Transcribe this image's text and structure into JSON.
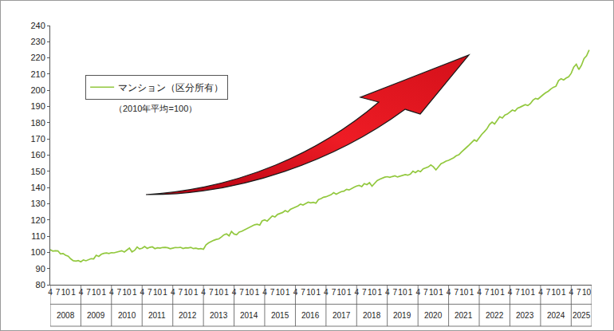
{
  "chart_data": {
    "type": "line",
    "note": "（2010年平均=100）",
    "legend": "upper left",
    "grid": false,
    "ylim": [
      80,
      240
    ],
    "yticks": [
      80,
      90,
      100,
      110,
      120,
      130,
      140,
      150,
      160,
      170,
      180,
      190,
      200,
      210,
      220,
      230,
      240
    ],
    "xlim": [
      "2008-04",
      "2025-12"
    ],
    "xticks": [
      {
        "value": "2008-04",
        "label": "4"
      },
      {
        "value": "2008-07",
        "label": "7"
      },
      {
        "value": "2008-10",
        "label": "10"
      },
      {
        "value": "2009-01",
        "label": "1"
      },
      {
        "value": "2009-04",
        "label": "4"
      },
      {
        "value": "2009-07",
        "label": "7"
      },
      {
        "value": "2009-10",
        "label": "10"
      },
      {
        "value": "2010-01",
        "label": "1"
      },
      {
        "value": "2010-04",
        "label": "4"
      },
      {
        "value": "2010-07",
        "label": "7"
      },
      {
        "value": "2010-10",
        "label": "10"
      },
      {
        "value": "2011-01",
        "label": "1"
      },
      {
        "value": "2011-04",
        "label": "4"
      },
      {
        "value": "2011-07",
        "label": "7"
      },
      {
        "value": "2011-10",
        "label": "10"
      },
      {
        "value": "2012-01",
        "label": "1"
      },
      {
        "value": "2012-04",
        "label": "4"
      },
      {
        "value": "2012-07",
        "label": "7"
      },
      {
        "value": "2012-10",
        "label": "10"
      },
      {
        "value": "2013-01",
        "label": "1"
      },
      {
        "value": "2013-04",
        "label": "4"
      },
      {
        "value": "2013-07",
        "label": "7"
      },
      {
        "value": "2013-10",
        "label": "10"
      },
      {
        "value": "2014-01",
        "label": "1"
      },
      {
        "value": "2014-04",
        "label": "4"
      },
      {
        "value": "2014-07",
        "label": "7"
      },
      {
        "value": "2014-10",
        "label": "10"
      },
      {
        "value": "2015-01",
        "label": "1"
      },
      {
        "value": "2015-04",
        "label": "4"
      },
      {
        "value": "2015-07",
        "label": "7"
      },
      {
        "value": "2015-10",
        "label": "10"
      },
      {
        "value": "2016-01",
        "label": "1"
      },
      {
        "value": "2016-04",
        "label": "4"
      },
      {
        "value": "2016-07",
        "label": "7"
      },
      {
        "value": "2016-10",
        "label": "10"
      },
      {
        "value": "2017-01",
        "label": "1"
      },
      {
        "value": "2017-04",
        "label": "4"
      },
      {
        "value": "2017-07",
        "label": "7"
      },
      {
        "value": "2017-10",
        "label": "10"
      },
      {
        "value": "2018-01",
        "label": "1"
      },
      {
        "value": "2018-04",
        "label": "4"
      },
      {
        "value": "2018-07",
        "label": "7"
      },
      {
        "value": "2018-10",
        "label": "10"
      },
      {
        "value": "2019-01",
        "label": "1"
      },
      {
        "value": "2019-04",
        "label": "4"
      },
      {
        "value": "2019-07",
        "label": "7"
      },
      {
        "value": "2019-10",
        "label": "10"
      },
      {
        "value": "2020-01",
        "label": "1"
      },
      {
        "value": "2020-04",
        "label": "4"
      },
      {
        "value": "2020-07",
        "label": "7"
      },
      {
        "value": "2020-10",
        "label": "10"
      },
      {
        "value": "2021-01",
        "label": "1"
      },
      {
        "value": "2021-04",
        "label": "4"
      },
      {
        "value": "2021-07",
        "label": "7"
      },
      {
        "value": "2021-10",
        "label": "10"
      },
      {
        "value": "2022-01",
        "label": "1"
      },
      {
        "value": "2022-04",
        "label": "4"
      },
      {
        "value": "2022-07",
        "label": "7"
      },
      {
        "value": "2022-10",
        "label": "10"
      },
      {
        "value": "2023-01",
        "label": "1"
      },
      {
        "value": "2023-04",
        "label": "4"
      },
      {
        "value": "2023-07",
        "label": "7"
      },
      {
        "value": "2023-10",
        "label": "10"
      },
      {
        "value": "2024-01",
        "label": "1"
      },
      {
        "value": "2024-04",
        "label": "4"
      },
      {
        "value": "2024-07",
        "label": "7"
      },
      {
        "value": "2024-10",
        "label": "10"
      },
      {
        "value": "2025-01",
        "label": "1"
      },
      {
        "value": "2025-04",
        "label": "4"
      },
      {
        "value": "2025-07",
        "label": "7"
      },
      {
        "value": "2025-10",
        "label": "10"
      }
    ],
    "x_groups": [
      {
        "label": "2008",
        "start": "2008-04",
        "end": "2009-04"
      },
      {
        "label": "2009",
        "start": "2009-04",
        "end": "2010-04"
      },
      {
        "label": "2010",
        "start": "2010-04",
        "end": "2011-04"
      },
      {
        "label": "2011",
        "start": "2011-04",
        "end": "2012-04"
      },
      {
        "label": "2012",
        "start": "2012-04",
        "end": "2013-04"
      },
      {
        "label": "2013",
        "start": "2013-04",
        "end": "2014-04"
      },
      {
        "label": "2014",
        "start": "2014-04",
        "end": "2015-04"
      },
      {
        "label": "2015",
        "start": "2015-04",
        "end": "2016-04"
      },
      {
        "label": "2016",
        "start": "2016-04",
        "end": "2017-04"
      },
      {
        "label": "2017",
        "start": "2017-04",
        "end": "2018-04"
      },
      {
        "label": "2018",
        "start": "2018-04",
        "end": "2019-04"
      },
      {
        "label": "2019",
        "start": "2019-04",
        "end": "2020-04"
      },
      {
        "label": "2020",
        "start": "2020-04",
        "end": "2021-04"
      },
      {
        "label": "2021",
        "start": "2021-04",
        "end": "2022-04"
      },
      {
        "label": "2022",
        "start": "2022-04",
        "end": "2023-04"
      },
      {
        "label": "2023",
        "start": "2023-04",
        "end": "2024-04"
      },
      {
        "label": "2024",
        "start": "2024-04",
        "end": "2025-04"
      },
      {
        "label": "2025",
        "start": "2025-04",
        "end": "2025-12"
      }
    ],
    "x": [
      "2008-04",
      "2008-05",
      "2008-06",
      "2008-07",
      "2008-08",
      "2008-09",
      "2008-10",
      "2008-11",
      "2008-12",
      "2009-01",
      "2009-02",
      "2009-03",
      "2009-04",
      "2009-05",
      "2009-06",
      "2009-07",
      "2009-08",
      "2009-09",
      "2009-10",
      "2009-11",
      "2009-12",
      "2010-01",
      "2010-02",
      "2010-03",
      "2010-04",
      "2010-05",
      "2010-06",
      "2010-07",
      "2010-08",
      "2010-09",
      "2010-10",
      "2010-11",
      "2010-12",
      "2011-01",
      "2011-02",
      "2011-03",
      "2011-04",
      "2011-05",
      "2011-06",
      "2011-07",
      "2011-08",
      "2011-09",
      "2011-10",
      "2011-11",
      "2011-12",
      "2012-01",
      "2012-02",
      "2012-03",
      "2012-04",
      "2012-05",
      "2012-06",
      "2012-07",
      "2012-08",
      "2012-09",
      "2012-10",
      "2012-11",
      "2012-12",
      "2013-01",
      "2013-02",
      "2013-03",
      "2013-04",
      "2013-05",
      "2013-06",
      "2013-07",
      "2013-08",
      "2013-09",
      "2013-10",
      "2013-11",
      "2013-12",
      "2014-01",
      "2014-02",
      "2014-03",
      "2014-04",
      "2014-05",
      "2014-06",
      "2014-07",
      "2014-08",
      "2014-09",
      "2014-10",
      "2014-11",
      "2014-12",
      "2015-01",
      "2015-02",
      "2015-03",
      "2015-04",
      "2015-05",
      "2015-06",
      "2015-07",
      "2015-08",
      "2015-09",
      "2015-10",
      "2015-11",
      "2015-12",
      "2016-01",
      "2016-02",
      "2016-03",
      "2016-04",
      "2016-05",
      "2016-06",
      "2016-07",
      "2016-08",
      "2016-09",
      "2016-10",
      "2016-11",
      "2016-12",
      "2017-01",
      "2017-02",
      "2017-03",
      "2017-04",
      "2017-05",
      "2017-06",
      "2017-07",
      "2017-08",
      "2017-09",
      "2017-10",
      "2017-11",
      "2017-12",
      "2018-01",
      "2018-02",
      "2018-03",
      "2018-04",
      "2018-05",
      "2018-06",
      "2018-07",
      "2018-08",
      "2018-09",
      "2018-10",
      "2018-11",
      "2018-12",
      "2019-01",
      "2019-02",
      "2019-03",
      "2019-04",
      "2019-05",
      "2019-06",
      "2019-07",
      "2019-08",
      "2019-09",
      "2019-10",
      "2019-11",
      "2019-12",
      "2020-01",
      "2020-02",
      "2020-03",
      "2020-04",
      "2020-05",
      "2020-06",
      "2020-07",
      "2020-08",
      "2020-09",
      "2020-10",
      "2020-11",
      "2020-12",
      "2021-01",
      "2021-02",
      "2021-03",
      "2021-04",
      "2021-05",
      "2021-06",
      "2021-07",
      "2021-08",
      "2021-09",
      "2021-10",
      "2021-11",
      "2021-12",
      "2022-01",
      "2022-02",
      "2022-03",
      "2022-04",
      "2022-05",
      "2022-06",
      "2022-07",
      "2022-08",
      "2022-09",
      "2022-10",
      "2022-11",
      "2022-12",
      "2023-01",
      "2023-02",
      "2023-03",
      "2023-04",
      "2023-05",
      "2023-06",
      "2023-07",
      "2023-08",
      "2023-09",
      "2023-10",
      "2023-11",
      "2023-12",
      "2024-01",
      "2024-02",
      "2024-03",
      "2024-04",
      "2024-05",
      "2024-06",
      "2024-07",
      "2024-08",
      "2024-09",
      "2024-10",
      "2024-11",
      "2024-12",
      "2025-01",
      "2025-02",
      "2025-03",
      "2025-04",
      "2025-05",
      "2025-06",
      "2025-07",
      "2025-08",
      "2025-09",
      "2025-10",
      "2025-11"
    ],
    "series": [
      {
        "name": "マンション（区分所有）",
        "color": "#92c83e",
        "line_style": "solid",
        "values": [
          101.6,
          100.8,
          101.0,
          100.9,
          99.0,
          99.3,
          98.2,
          97.6,
          96.0,
          94.8,
          94.6,
          94.9,
          94.2,
          95.3,
          94.8,
          95.5,
          96.1,
          96.0,
          98.2,
          97.5,
          98.8,
          99.4,
          99.6,
          99.3,
          99.8,
          99.7,
          100.2,
          100.6,
          101.0,
          100.2,
          101.5,
          102.6,
          100.3,
          101.2,
          103.3,
          102.1,
          102.5,
          103.6,
          102.4,
          103.1,
          103.4,
          102.3,
          102.8,
          102.6,
          103.0,
          103.1,
          102.8,
          102.2,
          102.6,
          103.0,
          102.9,
          103.1,
          102.4,
          102.8,
          102.7,
          103.1,
          102.3,
          102.6,
          102.1,
          102.3,
          101.9,
          104.6,
          105.8,
          106.7,
          107.4,
          108.0,
          108.3,
          109.5,
          110.8,
          111.4,
          110.2,
          112.9,
          111.3,
          110.9,
          112.5,
          113.0,
          113.8,
          114.7,
          115.6,
          116.1,
          117.0,
          117.3,
          116.8,
          119.4,
          120.0,
          119.3,
          121.2,
          122.5,
          121.8,
          123.4,
          124.0,
          124.6,
          125.8,
          124.9,
          126.5,
          127.2,
          127.9,
          128.6,
          129.8,
          129.2,
          130.1,
          131.0,
          130.5,
          130.9,
          130.3,
          132.6,
          133.2,
          134.0,
          134.3,
          135.0,
          135.6,
          136.8,
          135.9,
          136.7,
          137.5,
          137.8,
          138.9,
          138.5,
          139.6,
          140.2,
          140.9,
          141.3,
          140.6,
          142.4,
          141.8,
          143.0,
          140.8,
          142.5,
          144.3,
          145.1,
          145.9,
          146.4,
          146.7,
          146.3,
          146.8,
          147.2,
          146.5,
          146.9,
          147.4,
          148.0,
          147.6,
          148.3,
          150.1,
          149.2,
          150.4,
          149.8,
          151.5,
          152.0,
          152.7,
          153.9,
          152.8,
          150.9,
          152.6,
          154.7,
          155.4,
          156.3,
          156.8,
          157.5,
          158.4,
          159.6,
          160.2,
          161.9,
          163.5,
          164.8,
          166.2,
          167.9,
          169.4,
          168.6,
          171.0,
          172.8,
          174.5,
          176.2,
          178.9,
          180.4,
          179.2,
          181.6,
          183.7,
          182.9,
          184.8,
          185.3,
          186.5,
          187.8,
          187.2,
          188.9,
          189.6,
          190.3,
          191.2,
          190.6,
          191.8,
          193.9,
          195.0,
          194.6,
          196.2,
          197.3,
          198.5,
          199.4,
          200.8,
          201.9,
          202.5,
          206.0,
          207.2,
          206.4,
          207.6,
          208.3,
          210.5,
          214.3,
          216.1,
          212.8,
          215.4,
          219.6,
          221.3,
          224.9
        ]
      }
    ]
  }
}
